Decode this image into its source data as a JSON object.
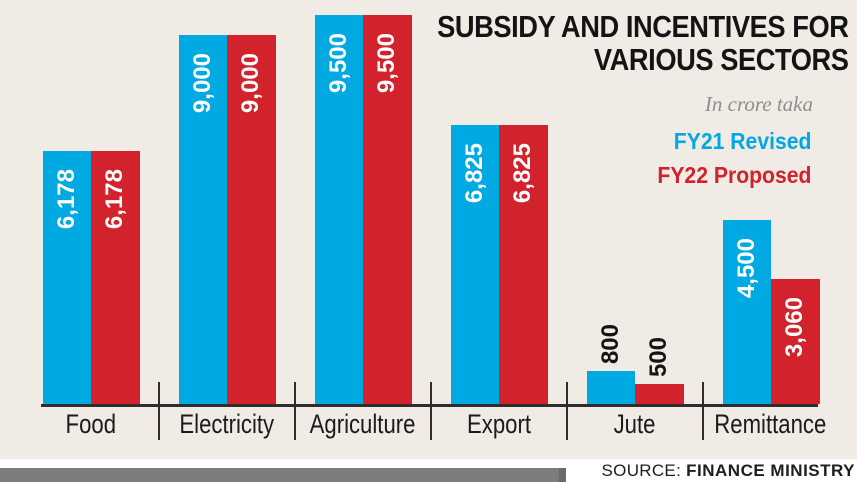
{
  "title": {
    "line1": "SUBSIDY AND INCENTIVES FOR",
    "line2": "VARIOUS SECTORS"
  },
  "subtitle": "In crore taka",
  "legend": [
    {
      "label": "FY21 Revised",
      "color": "#00a9e1"
    },
    {
      "label": "FY22 Proposed",
      "color": "#d2222b"
    }
  ],
  "source": {
    "prefix": "SOURCE:",
    "name": "FINANCE MINISTRY"
  },
  "colors": {
    "background": "#f0ebe4",
    "bar_blue": "#00a9e1",
    "bar_red": "#d2222b",
    "axis": "#2e2e2e",
    "footer_bar": "#7c7d7d",
    "subtitle_gray": "#8e8e8e",
    "title_text": "#141414"
  },
  "chart_data": {
    "type": "bar",
    "title": "SUBSIDY AND INCENTIVES FOR VARIOUS SECTORS",
    "unit": "In crore taka",
    "categories": [
      "Food",
      "Electricity",
      "Agriculture",
      "Export",
      "Jute",
      "Remittance"
    ],
    "series": [
      {
        "name": "FY21 Revised",
        "color": "#00a9e1",
        "values": [
          6178,
          9000,
          9500,
          6825,
          800,
          4500
        ]
      },
      {
        "name": "FY22 Proposed",
        "color": "#d2222b",
        "values": [
          6178,
          9000,
          9500,
          6825,
          500,
          3060
        ]
      }
    ],
    "value_labels": [
      [
        "6,178",
        "9,000",
        "9,500",
        "6,825",
        "800",
        "4,500"
      ],
      [
        "6,178",
        "9,000",
        "9,500",
        "6,825",
        "500",
        "3,060"
      ]
    ],
    "ylim": [
      0,
      9500
    ],
    "grid": false,
    "legend_position": "top-right",
    "xlabel": "",
    "ylabel": ""
  }
}
